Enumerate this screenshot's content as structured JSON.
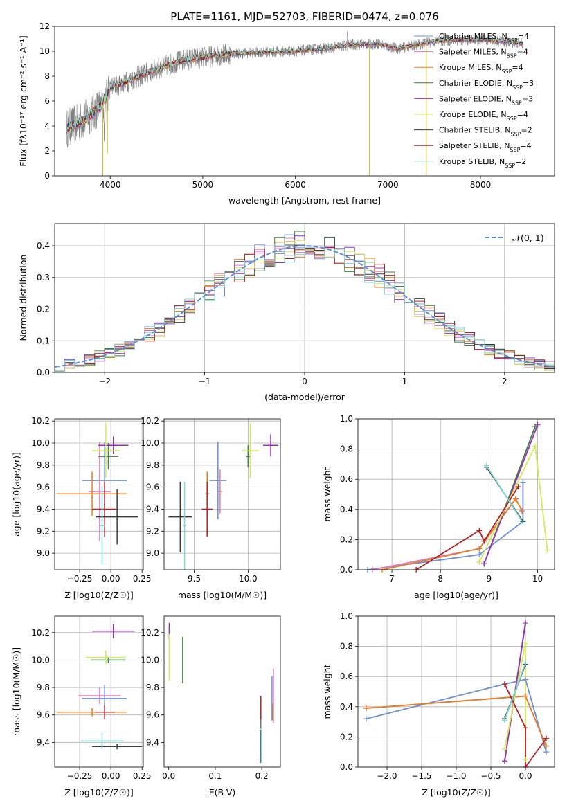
{
  "chart_data": [
    {
      "id": "spectrum",
      "type": "line",
      "title": "PLATE=1161, MJD=52703, FIBERID=0474, z=0.076",
      "xlabel": "wavelength [Angstrom, rest frame]",
      "ylabel": "Flux [fλ10⁻¹⁷ erg cm⁻² s⁻¹ A⁻¹]",
      "xlim": [
        3400,
        8800
      ],
      "ylim": [
        0,
        12
      ],
      "xticks": [
        4000,
        5000,
        6000,
        7000,
        8000
      ],
      "yticks": [
        0,
        2,
        4,
        6,
        8,
        10,
        12
      ],
      "grid": false,
      "legend_position": "right",
      "observed": {
        "color": "#808080",
        "x_range": [
          3530,
          8460
        ]
      },
      "continuum": {
        "x": [
          3530,
          3700,
          3900,
          4000,
          4200,
          4500,
          4800,
          5000,
          5300,
          5600,
          6000,
          6300,
          6600,
          6900,
          7100,
          7300,
          7500,
          7800,
          8100,
          8460
        ],
        "y": [
          3.8,
          4.4,
          5.6,
          7.1,
          7.6,
          8.6,
          9.3,
          9.5,
          9.8,
          9.9,
          10.0,
          10.2,
          10.5,
          10.6,
          10.2,
          10.5,
          10.8,
          10.9,
          10.9,
          10.6
        ]
      },
      "legend": [
        {
          "name": "Chabrier MILES, N_SSP=4",
          "color": "#6a8fd9"
        },
        {
          "name": "Salpeter MILES, N_SSP=4",
          "color": "#e377c2"
        },
        {
          "name": "Kroupa MILES, N_SSP=4",
          "color": "#e67e22"
        },
        {
          "name": "Chabrier ELODIE, N_SSP=3",
          "color": "#3f7f3f"
        },
        {
          "name": "Salpeter ELODIE, N_SSP=3",
          "color": "#9b30b5"
        },
        {
          "name": "Kroupa ELODIE, N_SSP=4",
          "color": "#d4e85a"
        },
        {
          "name": "Chabrier STELIB, N_SSP=2",
          "color": "#3a3a3a"
        },
        {
          "name": "Salpeter STELIB, N_SSP=4",
          "color": "#b22222"
        },
        {
          "name": "Kroupa STELIB, N_SSP=2",
          "color": "#7fd8d8"
        }
      ],
      "legend_labels": [
        {
          "pre": "Chabrier MILES, N",
          "sub": "SSP",
          "post": "=4"
        },
        {
          "pre": "Salpeter MILES, N",
          "sub": "SSP",
          "post": "=4"
        },
        {
          "pre": "Kroupa MILES, N",
          "sub": "SSP",
          "post": "=4"
        },
        {
          "pre": "Chabrier ELODIE, N",
          "sub": "SSP",
          "post": "=3"
        },
        {
          "pre": "Salpeter ELODIE, N",
          "sub": "SSP",
          "post": "=3"
        },
        {
          "pre": "Kroupa ELODIE, N",
          "sub": "SSP",
          "post": "=4"
        },
        {
          "pre": "Chabrier STELIB, N",
          "sub": "SSP",
          "post": "=2"
        },
        {
          "pre": "Salpeter STELIB, N",
          "sub": "SSP",
          "post": "=4"
        },
        {
          "pre": "Kroupa STELIB, N",
          "sub": "SSP",
          "post": "=2"
        }
      ]
    },
    {
      "id": "residuals",
      "type": "line",
      "xlabel": "(data-model)/error",
      "ylabel": "Normed distribution",
      "xlim": [
        -2.5,
        2.5
      ],
      "ylim": [
        0,
        0.47
      ],
      "xticks": [
        -2,
        -1,
        0,
        1,
        2
      ],
      "yticks": [
        0.0,
        0.1,
        0.2,
        0.3,
        0.4
      ],
      "grid": true,
      "legend": [
        {
          "name": "N(0,1)",
          "color": "#5b8ad6",
          "style": "dashed"
        }
      ],
      "legend_label": "𝒩(0, 1)",
      "bin_width": 0.1
    },
    {
      "id": "age_vs_z",
      "type": "scatter",
      "xlabel": "Z [log10(Z/Z☉)]",
      "ylabel": "age [log10(age/yr)]",
      "xlim": [
        -0.45,
        0.26
      ],
      "ylim": [
        8.85,
        10.22
      ],
      "xticks": [
        -0.25,
        0.0,
        0.25
      ],
      "yticks": [
        9.0,
        9.2,
        9.4,
        9.6,
        9.8,
        10.0,
        10.2
      ],
      "grid": true,
      "points": [
        {
          "x": -0.05,
          "y": 9.66,
          "xerr": 0.18,
          "yerr": 0.35,
          "color": "#6a8fd9"
        },
        {
          "x": -0.09,
          "y": 9.56,
          "xerr": 0.09,
          "yerr": 0.45,
          "color": "#e377c2"
        },
        {
          "x": -0.15,
          "y": 9.54,
          "xerr": 0.28,
          "yerr": 0.2,
          "color": "#e67e22"
        },
        {
          "x": -0.02,
          "y": 9.88,
          "xerr": 0.08,
          "yerr": 0.12,
          "color": "#3f7f3f"
        },
        {
          "x": 0.02,
          "y": 9.98,
          "xerr": 0.12,
          "yerr": 0.08,
          "color": "#9b30b5"
        },
        {
          "x": -0.04,
          "y": 9.93,
          "xerr": 0.11,
          "yerr": 0.25,
          "color": "#d4e85a"
        },
        {
          "x": 0.05,
          "y": 9.33,
          "xerr": 0.17,
          "yerr": 0.25,
          "color": "#3a3a3a"
        },
        {
          "x": -0.05,
          "y": 9.4,
          "xerr": 0.1,
          "yerr": 0.25,
          "color": "#b22222"
        },
        {
          "x": -0.07,
          "y": 9.25,
          "xerr": 0.02,
          "yerr": 0.35,
          "color": "#7fd8d8"
        }
      ]
    },
    {
      "id": "age_vs_mass",
      "type": "scatter",
      "xlabel": "mass [log10(M/M☉)]",
      "xlim": [
        9.22,
        10.3
      ],
      "ylim": [
        8.85,
        10.22
      ],
      "xticks": [
        9.5,
        10.0
      ],
      "yticks": [
        9.0,
        9.2,
        9.4,
        9.6,
        9.8,
        10.0,
        10.2
      ],
      "grid": true,
      "points": [
        {
          "x": 9.72,
          "y": 9.66,
          "xerr": 0.08,
          "yerr": 0.35,
          "color": "#6a8fd9"
        },
        {
          "x": 9.74,
          "y": 9.56,
          "xerr": 0.02,
          "yerr": 0.2,
          "color": "#e377c2"
        },
        {
          "x": 9.62,
          "y": 9.54,
          "xerr": 0.02,
          "yerr": 0.2,
          "color": "#e67e22"
        },
        {
          "x": 10.0,
          "y": 9.88,
          "xerr": 0.02,
          "yerr": 0.1,
          "color": "#3f7f3f"
        },
        {
          "x": 10.21,
          "y": 9.98,
          "xerr": 0.07,
          "yerr": 0.1,
          "color": "#9b30b5"
        },
        {
          "x": 10.02,
          "y": 9.93,
          "xerr": 0.08,
          "yerr": 0.25,
          "color": "#d4e85a"
        },
        {
          "x": 9.37,
          "y": 9.33,
          "xerr": 0.11,
          "yerr": 0.32,
          "color": "#3a3a3a"
        },
        {
          "x": 9.62,
          "y": 9.4,
          "xerr": 0.05,
          "yerr": 0.25,
          "color": "#b22222"
        },
        {
          "x": 9.41,
          "y": 9.25,
          "xerr": 0.01,
          "yerr": 0.4,
          "color": "#7fd8d8"
        }
      ]
    },
    {
      "id": "mass_weight_vs_age",
      "type": "line",
      "xlabel": "age [log10(age/yr)]",
      "ylabel": "mass weight",
      "xlim": [
        6.3,
        10.35
      ],
      "ylim": [
        0,
        1.0
      ],
      "xticks": [
        7,
        8,
        9,
        10
      ],
      "yticks": [
        0.0,
        0.2,
        0.4,
        0.6,
        0.8,
        1.0
      ],
      "grid": true,
      "series": [
        {
          "color": "#6a8fd9",
          "x": [
            6.5,
            8.8,
            9.7,
            9.7
          ],
          "y": [
            0.0,
            0.1,
            0.32,
            0.58
          ]
        },
        {
          "color": "#e377c2",
          "x": [
            6.6,
            8.8,
            9.55,
            9.68
          ],
          "y": [
            0.0,
            0.14,
            0.47,
            0.39
          ]
        },
        {
          "color": "#e67e22",
          "x": [
            6.8,
            8.8,
            9.55,
            9.68
          ],
          "y": [
            0.0,
            0.14,
            0.47,
            0.39
          ]
        },
        {
          "color": "#3f7f3f",
          "x": [
            8.9,
            9.95
          ],
          "y": [
            0.04,
            0.95
          ]
        },
        {
          "color": "#9b30b5",
          "x": [
            8.9,
            10.0
          ],
          "y": [
            0.04,
            0.96
          ]
        },
        {
          "color": "#d4e85a",
          "x": [
            8.8,
            9.95,
            10.2
          ],
          "y": [
            0.05,
            0.82,
            0.13
          ]
        },
        {
          "color": "#3a3a3a",
          "x": [
            8.95,
            9.7
          ],
          "y": [
            0.68,
            0.32
          ]
        },
        {
          "color": "#b22222",
          "x": [
            7.5,
            8.8,
            8.9,
            9.6
          ],
          "y": [
            0.0,
            0.26,
            0.19,
            0.55
          ]
        },
        {
          "color": "#7fd8d8",
          "x": [
            8.95,
            9.7
          ],
          "y": [
            0.69,
            0.31
          ]
        }
      ]
    },
    {
      "id": "mass_vs_z",
      "type": "scatter",
      "xlabel": "Z [log10(Z/Z☉)]",
      "ylabel": "mass [log10(M/M☉)]",
      "xlim": [
        -0.45,
        0.26
      ],
      "ylim": [
        9.22,
        10.32
      ],
      "xticks": [
        -0.25,
        0.0,
        0.25
      ],
      "yticks": [
        9.4,
        9.6,
        9.8,
        10.0,
        10.2
      ],
      "grid": true,
      "points": [
        {
          "x": -0.05,
          "y": 9.72,
          "xerr": 0.18,
          "yerr": 0.1,
          "color": "#6a8fd9"
        },
        {
          "x": -0.09,
          "y": 9.74,
          "xerr": 0.17,
          "yerr": 0.06,
          "color": "#e377c2"
        },
        {
          "x": -0.15,
          "y": 9.62,
          "xerr": 0.28,
          "yerr": 0.03,
          "color": "#e67e22"
        },
        {
          "x": -0.02,
          "y": 10.0,
          "xerr": 0.14,
          "yerr": 0.02,
          "color": "#3f7f3f"
        },
        {
          "x": 0.02,
          "y": 10.21,
          "xerr": 0.17,
          "yerr": 0.05,
          "color": "#9b30b5"
        },
        {
          "x": -0.04,
          "y": 10.02,
          "xerr": 0.16,
          "yerr": 0.05,
          "color": "#d4e85a"
        },
        {
          "x": 0.05,
          "y": 9.37,
          "xerr": 0.2,
          "yerr": 0.02,
          "color": "#3a3a3a"
        },
        {
          "x": -0.05,
          "y": 9.62,
          "xerr": 0.08,
          "yerr": 0.05,
          "color": "#b22222"
        },
        {
          "x": -0.07,
          "y": 9.41,
          "xerr": 0.17,
          "yerr": 0.06,
          "color": "#7fd8d8"
        }
      ]
    },
    {
      "id": "mass_vs_ebv",
      "type": "scatter",
      "xlabel": "E(B-V)",
      "xlim": [
        -0.01,
        0.24
      ],
      "ylim": [
        9.22,
        10.32
      ],
      "xticks": [
        0.0,
        0.1,
        0.2
      ],
      "yticks": [
        9.4,
        9.6,
        9.8,
        10.0,
        10.2
      ],
      "grid": false,
      "points": [
        {
          "x": 0.222,
          "y": 9.72,
          "xerr": 0,
          "yerr": 0.16,
          "color": "#6a8fd9"
        },
        {
          "x": 0.225,
          "y": 9.74,
          "xerr": 0,
          "yerr": 0.2,
          "color": "#e377c2"
        },
        {
          "x": 0.224,
          "y": 9.62,
          "xerr": 0,
          "yerr": 0.06,
          "color": "#e67e22"
        },
        {
          "x": 0.03,
          "y": 10.0,
          "xerr": 0,
          "yerr": 0.17,
          "color": "#3f7f3f"
        },
        {
          "x": 0.001,
          "y": 10.21,
          "xerr": 0,
          "yerr": 0.06,
          "color": "#9b30b5"
        },
        {
          "x": 0.001,
          "y": 10.02,
          "xerr": 0,
          "yerr": 0.17,
          "color": "#d4e85a"
        },
        {
          "x": 0.197,
          "y": 9.37,
          "xerr": 0,
          "yerr": 0.12,
          "color": "#3a3a3a"
        },
        {
          "x": 0.198,
          "y": 9.62,
          "xerr": 0,
          "yerr": 0.12,
          "color": "#b22222"
        },
        {
          "x": 0.199,
          "y": 9.41,
          "xerr": 0,
          "yerr": 0.16,
          "color": "#7fd8d8"
        }
      ]
    },
    {
      "id": "mass_weight_vs_z",
      "type": "line",
      "xlabel": "Z [log10(Z/Z☉)]",
      "ylabel": "mass weight",
      "xlim": [
        -2.42,
        0.42
      ],
      "ylim": [
        0,
        1.0
      ],
      "xticks": [
        -2.0,
        -1.5,
        -1.0,
        -0.5,
        0.0
      ],
      "yticks": [
        0.0,
        0.2,
        0.4,
        0.6,
        0.8,
        1.0
      ],
      "grid": true,
      "series": [
        {
          "color": "#6a8fd9",
          "x": [
            -2.3,
            -0.3,
            0.0,
            0.3
          ],
          "y": [
            0.32,
            0.55,
            0.58,
            0.1
          ]
        },
        {
          "color": "#e377c2",
          "x": [
            -2.3,
            0.0,
            0.3
          ],
          "y": [
            0.39,
            0.47,
            0.14
          ]
        },
        {
          "color": "#e67e22",
          "x": [
            -2.3,
            0.0,
            0.3
          ],
          "y": [
            0.39,
            0.47,
            0.14
          ]
        },
        {
          "color": "#3f7f3f",
          "x": [
            -0.3,
            0.0
          ],
          "y": [
            0.04,
            0.95
          ]
        },
        {
          "color": "#9b30b5",
          "x": [
            -0.3,
            0.0
          ],
          "y": [
            0.04,
            0.96
          ]
        },
        {
          "color": "#d4e85a",
          "x": [
            -0.3,
            0.0,
            0.0
          ],
          "y": [
            0.12,
            0.82,
            0.05
          ]
        },
        {
          "color": "#3a3a3a",
          "x": [
            -0.3,
            0.0
          ],
          "y": [
            0.32,
            0.68
          ]
        },
        {
          "color": "#b22222",
          "x": [
            -0.3,
            0.0,
            0.0,
            0.3
          ],
          "y": [
            0.55,
            0.26,
            0.0,
            0.19
          ]
        },
        {
          "color": "#7fd8d8",
          "x": [
            -0.3,
            0.0
          ],
          "y": [
            0.31,
            0.69
          ]
        }
      ]
    }
  ]
}
